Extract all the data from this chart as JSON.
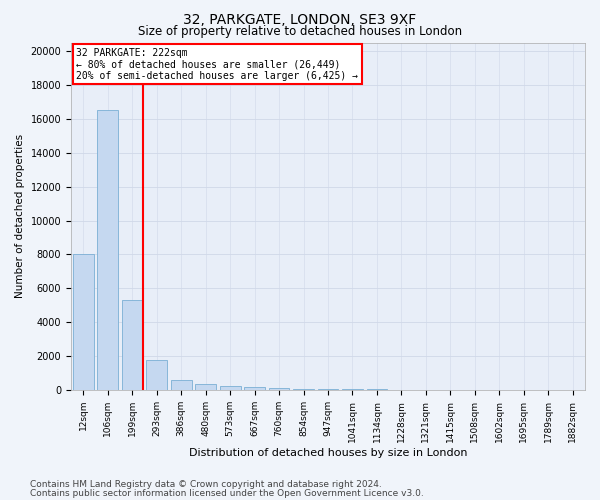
{
  "title1": "32, PARKGATE, LONDON, SE3 9XF",
  "title2": "Size of property relative to detached houses in London",
  "xlabel": "Distribution of detached houses by size in London",
  "ylabel": "Number of detached properties",
  "bin_labels": [
    "12sqm",
    "106sqm",
    "199sqm",
    "293sqm",
    "386sqm",
    "480sqm",
    "573sqm",
    "667sqm",
    "760sqm",
    "854sqm",
    "947sqm",
    "1041sqm",
    "1134sqm",
    "1228sqm",
    "1321sqm",
    "1415sqm",
    "1508sqm",
    "1602sqm",
    "1695sqm",
    "1789sqm",
    "1882sqm"
  ],
  "bar_heights": [
    8050,
    16500,
    5300,
    1800,
    600,
    350,
    250,
    180,
    120,
    80,
    60,
    50,
    40,
    30,
    25,
    20,
    15,
    12,
    10,
    8,
    5
  ],
  "bar_color": "#c5d8f0",
  "bar_edge_color": "#7bafd4",
  "bar_alpha": 1.0,
  "vline_color": "red",
  "vline_linewidth": 1.5,
  "annotation_text": "32 PARKGATE: 222sqm\n← 80% of detached houses are smaller (26,449)\n20% of semi-detached houses are larger (6,425) →",
  "annotation_box_color": "white",
  "annotation_box_edge_color": "red",
  "annotation_fontsize": 7.0,
  "ylim": [
    0,
    20500
  ],
  "yticks": [
    0,
    2000,
    4000,
    6000,
    8000,
    10000,
    12000,
    14000,
    16000,
    18000,
    20000
  ],
  "footer1": "Contains HM Land Registry data © Crown copyright and database right 2024.",
  "footer2": "Contains public sector information licensed under the Open Government Licence v3.0.",
  "background_color": "#f0f4fa",
  "plot_background": "#e8eef8",
  "grid_color": "#d0d8e8",
  "title1_fontsize": 10,
  "title2_fontsize": 8.5,
  "xlabel_fontsize": 8,
  "ylabel_fontsize": 7.5,
  "tick_fontsize": 7,
  "footer_fontsize": 6.5
}
